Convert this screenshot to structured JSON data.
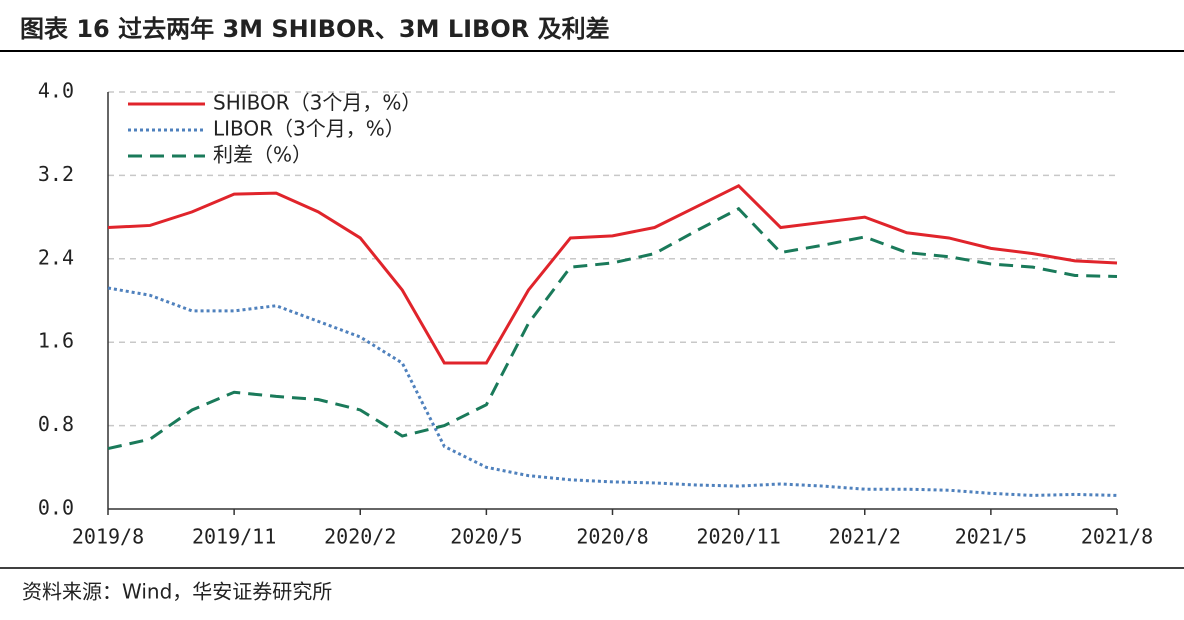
{
  "chart_data": {
    "type": "line",
    "title": "图表 16 过去两年 3M SHIBOR、3M LIBOR 及利差",
    "source": "资料来源：Wind，华安证券研究所",
    "x": [
      "2019/8",
      "2019/9",
      "2019/10",
      "2019/11",
      "2019/12",
      "2020/1",
      "2020/2",
      "2020/3",
      "2020/4",
      "2020/5",
      "2020/6",
      "2020/7",
      "2020/8",
      "2020/9",
      "2020/10",
      "2020/11",
      "2020/12",
      "2021/1",
      "2021/2",
      "2021/3",
      "2021/4",
      "2021/5",
      "2021/6",
      "2021/7",
      "2021/8"
    ],
    "xticks": [
      "2019/8",
      "2019/11",
      "2020/2",
      "2020/5",
      "2020/8",
      "2020/11",
      "2021/2",
      "2021/5",
      "2021/8"
    ],
    "series": [
      {
        "name": "SHIBOR（3个月，%）",
        "color": "#e0242b",
        "dash": "solid",
        "values": [
          2.7,
          2.72,
          2.85,
          3.02,
          3.03,
          2.85,
          2.6,
          2.1,
          1.4,
          1.4,
          2.1,
          2.6,
          2.62,
          2.7,
          2.9,
          3.1,
          2.7,
          2.75,
          2.8,
          2.65,
          2.6,
          2.5,
          2.45,
          2.38,
          2.36
        ]
      },
      {
        "name": "LIBOR（3个月，%）",
        "color": "#4f81bd",
        "dash": "dot",
        "values": [
          2.12,
          2.05,
          1.9,
          1.9,
          1.95,
          1.8,
          1.65,
          1.4,
          0.6,
          0.4,
          0.32,
          0.28,
          0.26,
          0.25,
          0.23,
          0.22,
          0.24,
          0.22,
          0.19,
          0.19,
          0.18,
          0.15,
          0.13,
          0.14,
          0.13
        ]
      },
      {
        "name": "利差（%）",
        "color": "#1a7a5a",
        "dash": "dash",
        "values": [
          0.58,
          0.67,
          0.95,
          1.12,
          1.08,
          1.05,
          0.95,
          0.7,
          0.8,
          1.0,
          1.78,
          2.32,
          2.36,
          2.45,
          2.67,
          2.88,
          2.46,
          2.53,
          2.61,
          2.46,
          2.42,
          2.35,
          2.32,
          2.24,
          2.23
        ]
      }
    ],
    "ylim": [
      0,
      4.0
    ],
    "yticks": [
      {
        "value": 0,
        "label": "0.0"
      },
      {
        "value": 0.8,
        "label": "0.8"
      },
      {
        "value": 1.6,
        "label": "1.6"
      },
      {
        "value": 2.4,
        "label": "2.4"
      },
      {
        "value": 3.2,
        "label": "3.2"
      },
      {
        "value": 4,
        "label": "4.0"
      }
    ],
    "grid": true
  }
}
